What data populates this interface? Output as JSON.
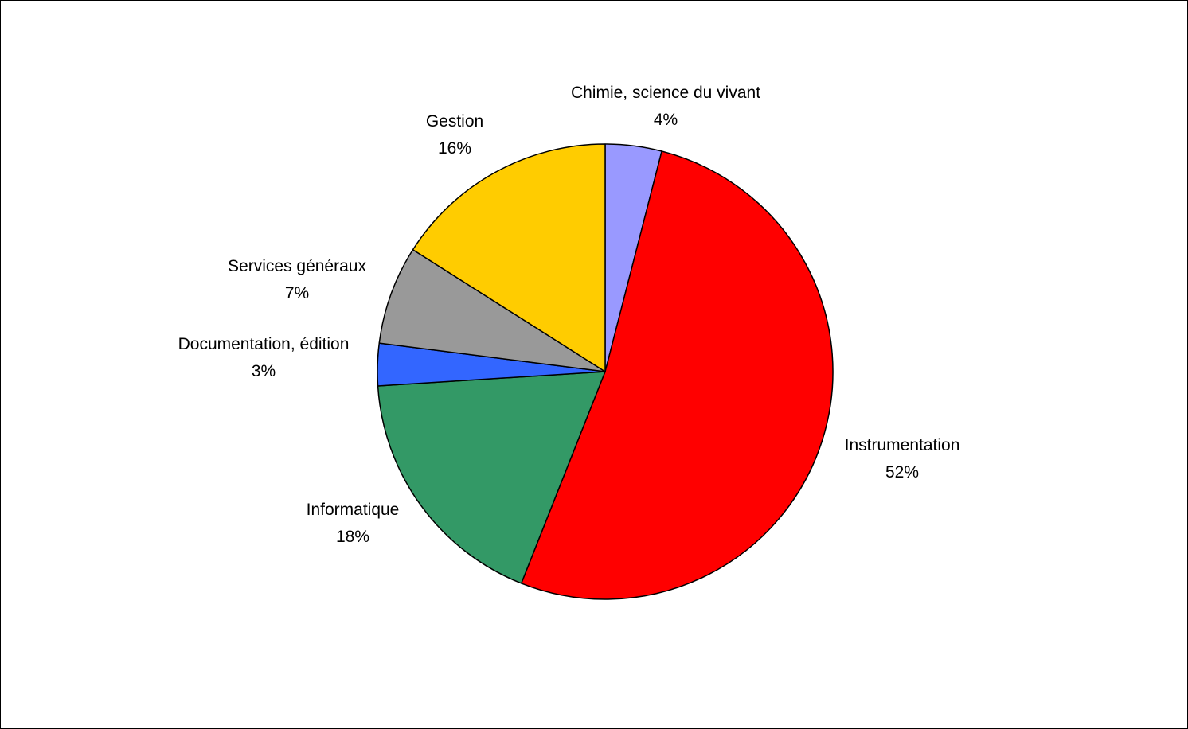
{
  "chart_data": {
    "type": "pie",
    "slices": [
      {
        "label": "Chimie, science du vivant",
        "value": 4,
        "value_label": "4%",
        "color": "#9999FF"
      },
      {
        "label": "Instrumentation",
        "value": 52,
        "value_label": "52%",
        "color": "#FF0000"
      },
      {
        "label": "Informatique",
        "value": 18,
        "value_label": "18%",
        "color": "#339966"
      },
      {
        "label": "Documentation, édition",
        "value": 3,
        "value_label": "3%",
        "color": "#3366FF"
      },
      {
        "label": "Services généraux",
        "value": 7,
        "value_label": "7%",
        "color": "#999999"
      },
      {
        "label": "Gestion",
        "value": 16,
        "value_label": "16%",
        "color": "#FFCC00"
      }
    ],
    "start_angle": "12 o'clock",
    "direction": "clockwise",
    "legend": "none"
  }
}
